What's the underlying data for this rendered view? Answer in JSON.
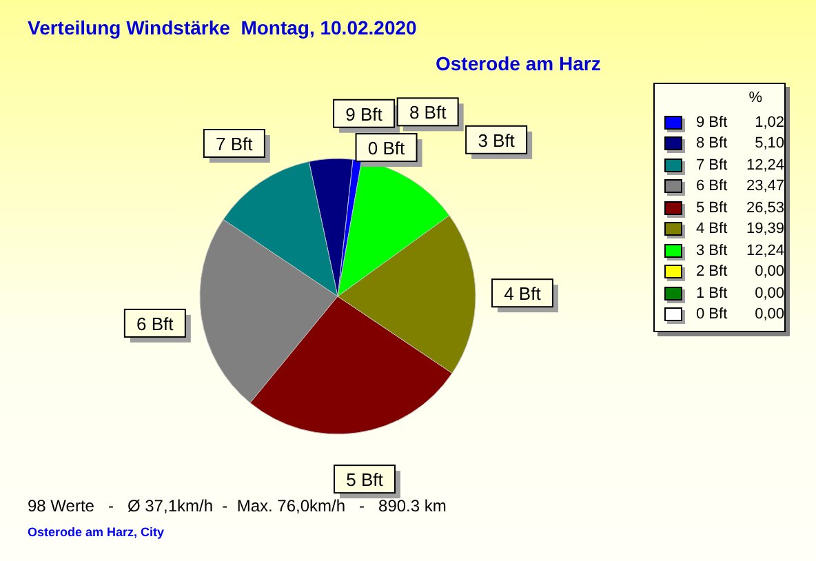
{
  "chart_data": {
    "type": "pie",
    "title": "Verteilung Windstärke  Montag, 10.02.2020",
    "subtitle": "Osterode am Harz",
    "legend_title": "%",
    "legend": "top right",
    "categories": [
      "9 Bft",
      "8 Bft",
      "7 Bft",
      "6 Bft",
      "5 Bft",
      "4 Bft",
      "3 Bft",
      "2 Bft",
      "1 Bft",
      "0 Bft"
    ],
    "values": [
      1.02,
      5.1,
      12.24,
      23.47,
      26.53,
      19.39,
      12.24,
      0,
      0,
      0
    ],
    "value_labels": [
      "1,02",
      "5,10",
      "12,24",
      "23,47",
      "26,53",
      "19,39",
      "12,24",
      "0,00",
      "0,00",
      "0,00"
    ],
    "colors": [
      "#0000ff",
      "#000080",
      "#008080",
      "#808080",
      "#800000",
      "#808000",
      "#00ff00",
      "#ffff00",
      "#008000",
      "#ffffff"
    ],
    "annotations": [
      "98 Werte   -   Ø 37,1km/h  -  Max. 76,0km/h   -   890.3 km",
      "Osterode am Harz, City"
    ]
  }
}
